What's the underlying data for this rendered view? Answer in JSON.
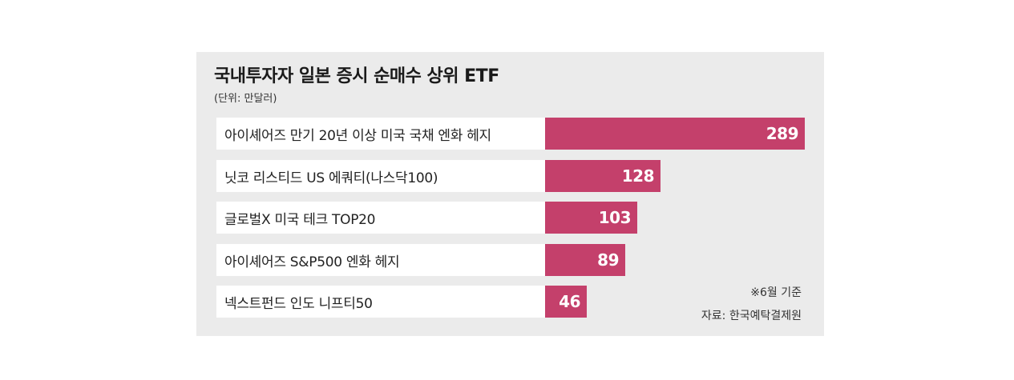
{
  "chart_data": {
    "type": "bar",
    "orientation": "horizontal",
    "title": "국내투자자 일본 증시 순매수 상위 ETF",
    "unit": "(단위: 만달러)",
    "categories": [
      "아이셰어즈 만기 20년 이상 미국 국채 엔화 헤지",
      "닛코 리스티드 US 에쿼티(나스닥100)",
      "글로벌X 미국 테크 TOP20",
      "아이셰어즈 S&P500 엔화 헤지",
      "넥스트펀드 인도 니프티50"
    ],
    "values": [
      289,
      128,
      103,
      89,
      46
    ],
    "xlim": [
      0,
      289
    ],
    "bar_color": "#c4406b",
    "notes": [
      "※6월 기준",
      "자료: 한국예탁결제원"
    ]
  }
}
